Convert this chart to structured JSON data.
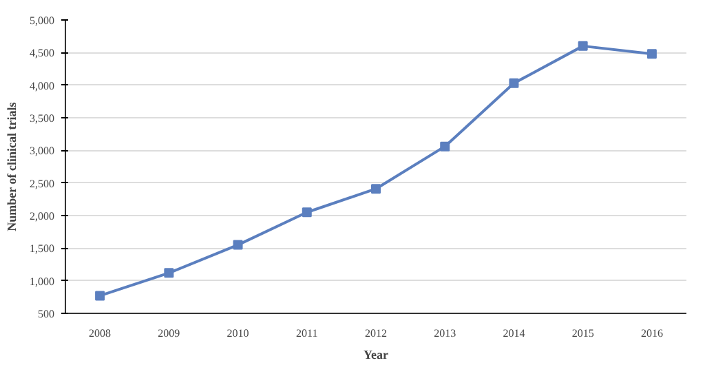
{
  "chart_data": {
    "type": "line",
    "xlabel": "Year",
    "ylabel": "Number of clinical trials",
    "categories": [
      "2008",
      "2009",
      "2010",
      "2011",
      "2012",
      "2013",
      "2014",
      "2015",
      "2016"
    ],
    "series": [
      {
        "color": "#5b7fbf",
        "values": [
          770,
          1120,
          1550,
          2050,
          2410,
          3060,
          4030,
          4600,
          4480
        ]
      }
    ],
    "ylim": [
      500,
      5000
    ],
    "yticks": [
      {
        "value": 500,
        "label": "500"
      },
      {
        "value": 1000,
        "label": "1,000"
      },
      {
        "value": 1500,
        "label": "1,500"
      },
      {
        "value": 2000,
        "label": "2,000"
      },
      {
        "value": 2500,
        "label": "2,500"
      },
      {
        "value": 3000,
        "label": "3,000"
      },
      {
        "value": 3500,
        "label": "3,500"
      },
      {
        "value": 4000,
        "label": "4,000"
      },
      {
        "value": 4500,
        "label": "4,500"
      },
      {
        "value": 5000,
        "label": "5,000"
      }
    ],
    "grid": "y",
    "marker": "square",
    "line_style": "solid"
  }
}
